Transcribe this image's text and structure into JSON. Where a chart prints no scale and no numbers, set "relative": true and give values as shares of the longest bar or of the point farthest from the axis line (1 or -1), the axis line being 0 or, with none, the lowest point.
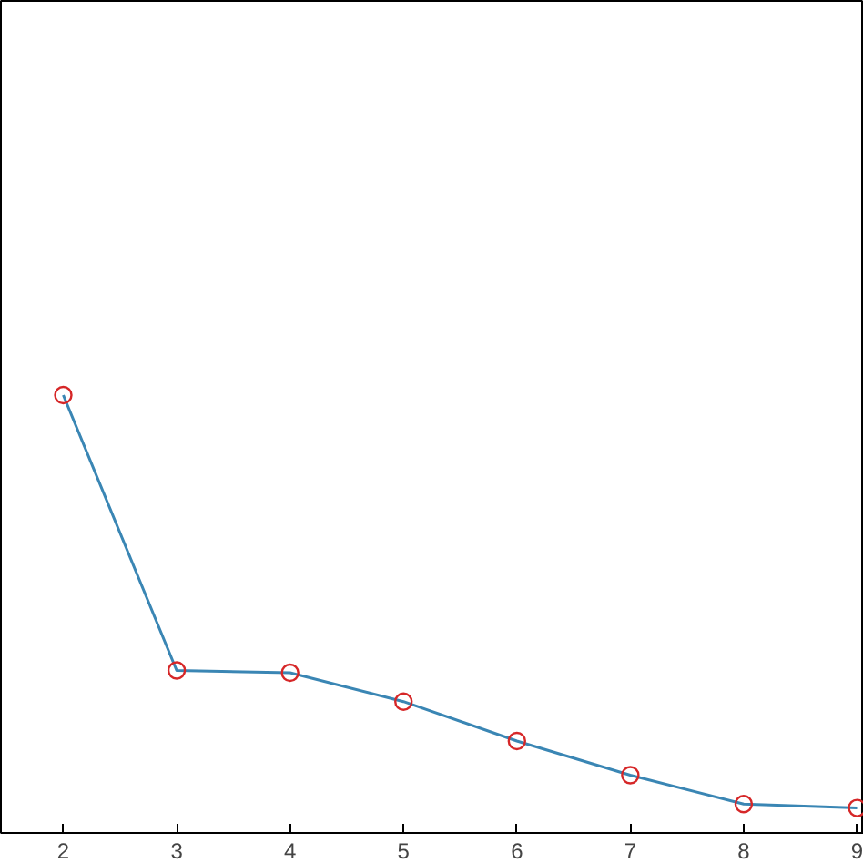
{
  "chart_data": {
    "type": "line",
    "relative": true,
    "tick_labels": "x",
    "marker": "circle",
    "line_style": "solid",
    "grid": false,
    "xlim": [
      1.45,
      9.06
    ],
    "xticks": [
      2,
      3,
      4,
      5,
      6,
      7,
      8,
      9
    ],
    "x": [
      2,
      3,
      4,
      5,
      6,
      7,
      8,
      9
    ],
    "series": [
      {
        "color": "#3a86b4",
        "values": [
          1,
          0.371,
          0.366,
          0.3,
          0.21,
          0.132,
          0.066,
          0.057
        ]
      }
    ]
  }
}
